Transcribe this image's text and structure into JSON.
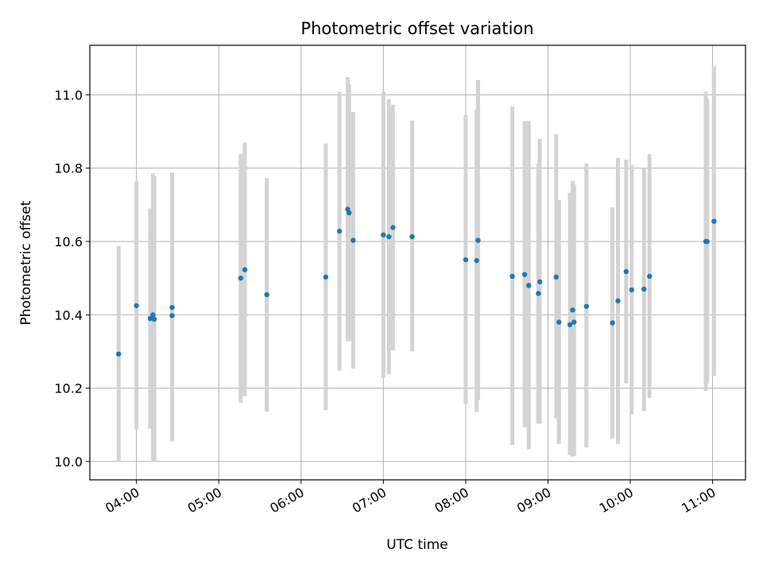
{
  "chart_data": {
    "type": "scatter",
    "title": "Photometric offset variation",
    "xlabel": "UTC time",
    "ylabel": "Photometric offset",
    "xlim": [
      "03:26",
      "11:24"
    ],
    "ylim": [
      9.95,
      11.135
    ],
    "x_ticks": [
      "04:00",
      "05:00",
      "06:00",
      "07:00",
      "08:00",
      "09:00",
      "10:00",
      "11:00"
    ],
    "y_ticks": [
      10.0,
      10.2,
      10.4,
      10.6,
      10.8,
      11.0
    ],
    "y_tick_labels": [
      "10.0",
      "10.2",
      "10.4",
      "10.6",
      "10.8",
      "11.0"
    ],
    "grid": true,
    "colors": {
      "points": "#1f77b4",
      "error_bars": "#d3d3d3",
      "grid": "#b0b0b0"
    },
    "points": [
      {
        "x": "03:47",
        "y": 10.293,
        "ylo": 10.0,
        "yhi": 10.588
      },
      {
        "x": "04:00",
        "y": 10.425,
        "ylo": 10.088,
        "yhi": 10.765
      },
      {
        "x": "04:10",
        "y": 10.39,
        "ylo": 10.09,
        "yhi": 10.69
      },
      {
        "x": "04:12",
        "y": 10.4,
        "ylo": 10.005,
        "yhi": 10.785
      },
      {
        "x": "04:13",
        "y": 10.388,
        "ylo": 10.0,
        "yhi": 10.778
      },
      {
        "x": "04:26",
        "y": 10.42,
        "ylo": 10.055,
        "yhi": 10.788
      },
      {
        "x": "04:26",
        "y": 10.398,
        "ylo": 10.055,
        "yhi": 10.788
      },
      {
        "x": "05:16",
        "y": 10.5,
        "ylo": 10.16,
        "yhi": 10.838
      },
      {
        "x": "05:19",
        "y": 10.523,
        "ylo": 10.178,
        "yhi": 10.87
      },
      {
        "x": "05:35",
        "y": 10.455,
        "ylo": 10.136,
        "yhi": 10.773
      },
      {
        "x": "06:18",
        "y": 10.503,
        "ylo": 10.14,
        "yhi": 10.867
      },
      {
        "x": "06:28",
        "y": 10.628,
        "ylo": 10.248,
        "yhi": 11.008
      },
      {
        "x": "06:34",
        "y": 10.688,
        "ylo": 10.328,
        "yhi": 11.048
      },
      {
        "x": "06:35",
        "y": 10.678,
        "ylo": 10.328,
        "yhi": 11.028
      },
      {
        "x": "06:38",
        "y": 10.603,
        "ylo": 10.253,
        "yhi": 10.953
      },
      {
        "x": "07:00",
        "y": 10.618,
        "ylo": 10.228,
        "yhi": 11.008
      },
      {
        "x": "07:04",
        "y": 10.613,
        "ylo": 10.238,
        "yhi": 10.988
      },
      {
        "x": "07:07",
        "y": 10.638,
        "ylo": 10.303,
        "yhi": 10.973
      },
      {
        "x": "07:21",
        "y": 10.613,
        "ylo": 10.3,
        "yhi": 10.93
      },
      {
        "x": "08:00",
        "y": 10.55,
        "ylo": 10.158,
        "yhi": 10.945
      },
      {
        "x": "08:08",
        "y": 10.548,
        "ylo": 10.135,
        "yhi": 10.96
      },
      {
        "x": "08:09",
        "y": 10.603,
        "ylo": 10.168,
        "yhi": 11.04
      },
      {
        "x": "08:34",
        "y": 10.505,
        "ylo": 10.045,
        "yhi": 10.968
      },
      {
        "x": "08:43",
        "y": 10.51,
        "ylo": 10.093,
        "yhi": 10.928
      },
      {
        "x": "08:46",
        "y": 10.48,
        "ylo": 10.033,
        "yhi": 10.928
      },
      {
        "x": "08:53",
        "y": 10.458,
        "ylo": 10.103,
        "yhi": 10.813
      },
      {
        "x": "08:54",
        "y": 10.49,
        "ylo": 10.103,
        "yhi": 10.88
      },
      {
        "x": "09:06",
        "y": 10.503,
        "ylo": 10.118,
        "yhi": 10.893
      },
      {
        "x": "09:08",
        "y": 10.38,
        "ylo": 10.048,
        "yhi": 10.713
      },
      {
        "x": "09:16",
        "y": 10.373,
        "ylo": 10.018,
        "yhi": 10.733
      },
      {
        "x": "09:18",
        "y": 10.413,
        "ylo": 10.013,
        "yhi": 10.765
      },
      {
        "x": "09:19",
        "y": 10.38,
        "ylo": 10.015,
        "yhi": 10.755
      },
      {
        "x": "09:28",
        "y": 10.423,
        "ylo": 10.038,
        "yhi": 10.813
      },
      {
        "x": "09:47",
        "y": 10.378,
        "ylo": 10.063,
        "yhi": 10.693
      },
      {
        "x": "09:51",
        "y": 10.438,
        "ylo": 10.048,
        "yhi": 10.828
      },
      {
        "x": "09:57",
        "y": 10.518,
        "ylo": 10.213,
        "yhi": 10.823
      },
      {
        "x": "10:01",
        "y": 10.468,
        "ylo": 10.128,
        "yhi": 10.808
      },
      {
        "x": "10:10",
        "y": 10.47,
        "ylo": 10.138,
        "yhi": 10.8
      },
      {
        "x": "10:14",
        "y": 10.505,
        "ylo": 10.173,
        "yhi": 10.838
      },
      {
        "x": "10:55",
        "y": 10.6,
        "ylo": 10.193,
        "yhi": 11.008
      },
      {
        "x": "10:56",
        "y": 10.6,
        "ylo": 10.213,
        "yhi": 10.988
      },
      {
        "x": "11:01",
        "y": 10.655,
        "ylo": 10.233,
        "yhi": 11.078
      }
    ]
  }
}
